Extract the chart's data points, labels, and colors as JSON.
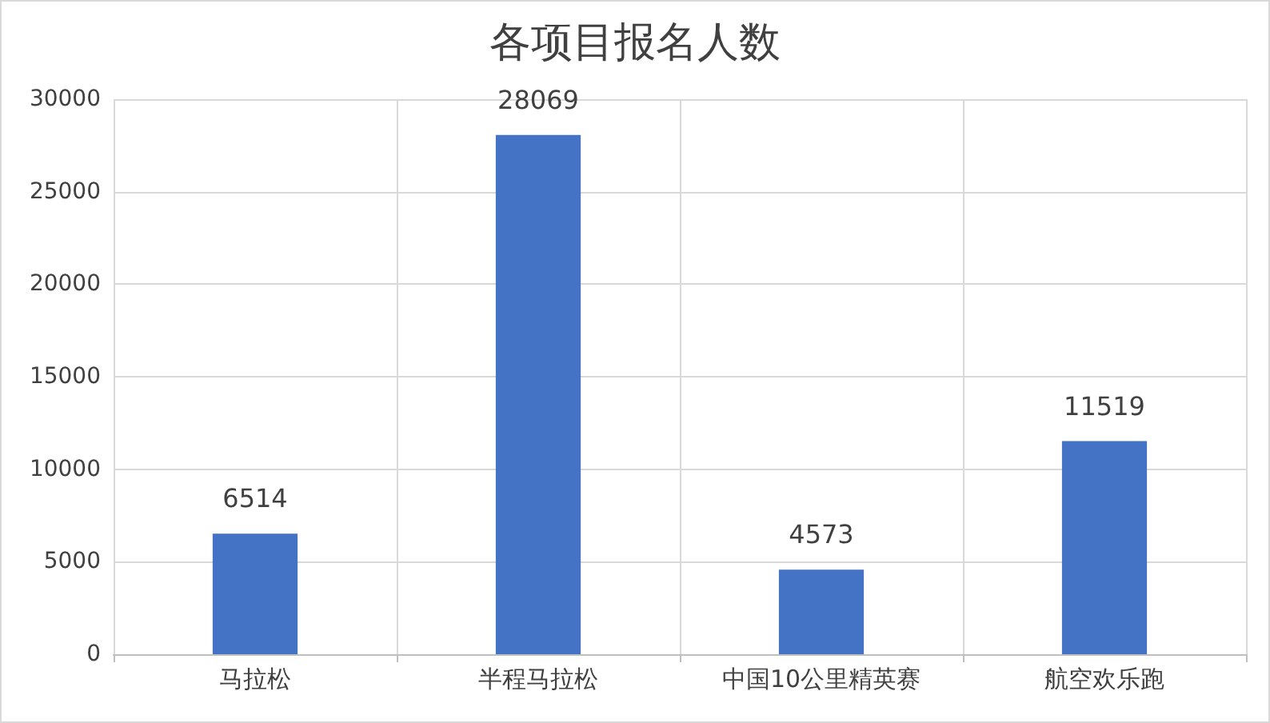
{
  "chart_data": {
    "type": "bar",
    "title": "各项目报名人数",
    "categories": [
      "马拉松",
      "半程马拉松",
      "中国10公里精英赛",
      "航空欢乐跑"
    ],
    "values": [
      6514,
      28069,
      4573,
      11519
    ],
    "color": "#4472c4",
    "ylim": [
      0,
      30000
    ],
    "yticks": [
      0,
      5000,
      10000,
      15000,
      20000,
      25000,
      30000
    ],
    "grid": true,
    "data_labels": true
  }
}
